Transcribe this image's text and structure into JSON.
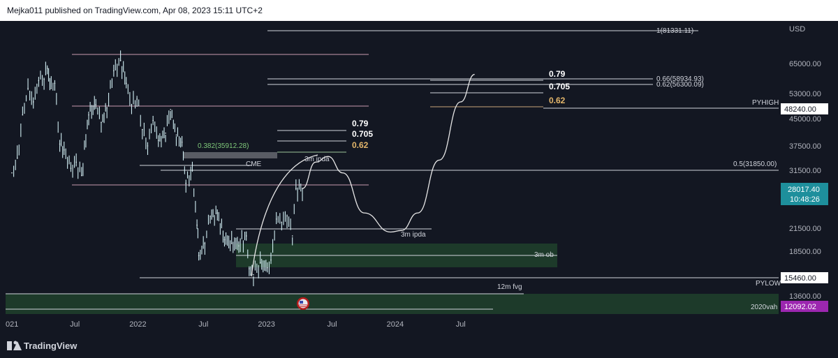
{
  "header": {
    "published": "Mejka011 published on TradingView.com, Apr 08, 2023 15:11 UTC+2"
  },
  "footer": {
    "brand": "TradingView"
  },
  "colors": {
    "background": "#131722",
    "candle": "#d1eef3",
    "grid": "#1f2230",
    "axis_text": "#b2b5be",
    "zone_green": "#1d3a2a",
    "last_price_badge": "#1e8f9c",
    "vah_badge": "#9c27b0"
  },
  "chart_data": {
    "type": "line",
    "title": "",
    "currency_label": "USD",
    "price_axis_ticks": [
      "65000.00",
      "53000.00",
      "45000.00",
      "37500.00",
      "31500.00",
      "21500.00",
      "18500.00",
      "13600.00"
    ],
    "price_axis_tick_values": [
      65000,
      53000,
      45000,
      37500,
      31500,
      21500,
      18500,
      13600
    ],
    "time_axis_labels": [
      "021",
      "Jul",
      "2022",
      "Jul",
      "2023",
      "Jul",
      "2024",
      "Jul"
    ],
    "time_axis_dates": [
      "2021-01",
      "2021-07",
      "2022-01",
      "2022-07",
      "2023-01",
      "2023-07",
      "2024-01",
      "2024-07"
    ],
    "price_badges": [
      {
        "value": "48240.00",
        "label": "PYHIGH"
      },
      {
        "value": "15460.00",
        "label": "PYLOW"
      },
      {
        "value": "12092.02",
        "label": "2020vah"
      }
    ],
    "last_price": {
      "value": "28017.40",
      "countdown": "10:48:26"
    },
    "series": [
      {
        "x": [
          "2021-01-05",
          "2021-01-20",
          "2021-02-05",
          "2021-02-20",
          "2021-03-05",
          "2021-03-20",
          "2021-04-05",
          "2021-04-14",
          "2021-04-25",
          "2021-05-05",
          "2021-05-19",
          "2021-06-01",
          "2021-06-20",
          "2021-07-05",
          "2021-07-20",
          "2021-08-10",
          "2021-08-30",
          "2021-09-15",
          "2021-10-01",
          "2021-10-20",
          "2021-11-09",
          "2021-11-25",
          "2021-12-10",
          "2021-12-25",
          "2022-01-10",
          "2022-01-25",
          "2022-02-10",
          "2022-02-25",
          "2022-03-15",
          "2022-03-29",
          "2022-04-15",
          "2022-05-01",
          "2022-05-12",
          "2022-05-30",
          "2022-06-13",
          "2022-06-18",
          "2022-07-05",
          "2022-07-20",
          "2022-08-10",
          "2022-08-30",
          "2022-09-20",
          "2022-10-10",
          "2022-10-31",
          "2022-11-09",
          "2022-11-21",
          "2022-12-10",
          "2022-12-30",
          "2023-01-10",
          "2023-01-25",
          "2023-02-10",
          "2023-02-25",
          "2023-03-10",
          "2023-03-20",
          "2023-04-08"
        ],
        "y": [
          31000,
          34500,
          46000,
          55000,
          50000,
          58000,
          58500,
          63000,
          55000,
          57000,
          38000,
          36500,
          32000,
          33500,
          30500,
          46000,
          49000,
          44000,
          48000,
          62000,
          66500,
          57000,
          49000,
          51000,
          42000,
          37500,
          44500,
          39000,
          41000,
          47500,
          40500,
          38500,
          29000,
          31500,
          22000,
          18000,
          19500,
          23500,
          24000,
          20000,
          19500,
          19200,
          20500,
          16500,
          15800,
          17200,
          16600,
          17500,
          23000,
          22500,
          23500,
          20500,
          28000,
          28017
        ]
      }
    ],
    "projection": {
      "x": [
        "2023-04-08",
        "2023-05-15",
        "2023-06-20",
        "2023-08-01",
        "2023-10-01",
        "2023-12-15",
        "2024-01-15",
        "2024-03-01",
        "2024-05-01",
        "2024-07-01",
        "2024-08-10"
      ],
      "y": [
        28000,
        33500,
        34900,
        31000,
        24000,
        21000,
        21200,
        24000,
        34000,
        50000,
        60500
      ]
    },
    "levels": [
      {
        "label": "1(81331.11)",
        "price": 81331.11
      },
      {
        "label": "0.66(58934.93)",
        "price": 58934.93
      },
      {
        "label": "0.62(56300.09)",
        "price": 56300.09
      },
      {
        "label": "0.5(31850.00)",
        "price": 31850.0
      },
      {
        "label": "0.382(35912.28)",
        "price": 35912.28
      },
      {
        "label": "CME",
        "price": 0
      },
      {
        "label": "3m ipda",
        "price": 0
      },
      {
        "label": "3m ob",
        "price": 0
      },
      {
        "label": "12m fvg",
        "price": 0
      }
    ],
    "fib_labels_right": [
      "0.79",
      "0.705",
      "0.62"
    ],
    "fib_labels_left": [
      "0.79",
      "0.705",
      "0.62"
    ],
    "annotations": {
      "ipda_top": "3m ipda",
      "ipda_bottom": "3m ipda",
      "cme": "CME",
      "ob": "3m ob",
      "fvg": "12m fvg",
      "fib382": "0.382(35912.28)",
      "level_1": "1(81331.11)",
      "level_066": "0.66(58934.93)",
      "level_062": "0.62(56300.09)",
      "level_05": "0.5(31850.00)",
      "pyhigh": "PYHIGH",
      "pylow": "PYLOW",
      "vah": "2020vah"
    },
    "grid": false,
    "legend": "none"
  }
}
